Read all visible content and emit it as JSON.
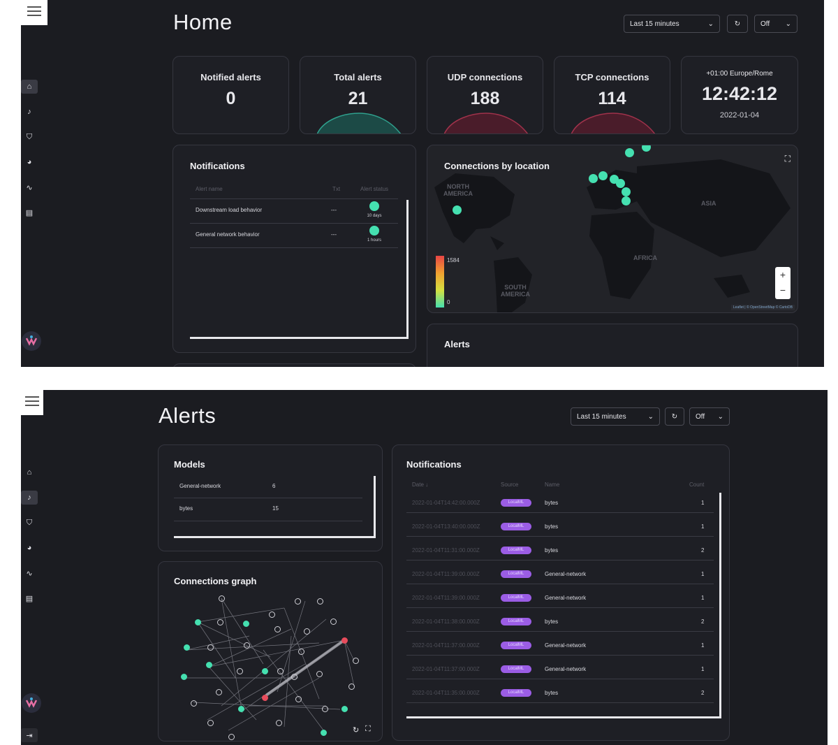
{
  "home": {
    "title": "Home",
    "time_range": "Last 15 minutes",
    "refresh": "Off",
    "stats": [
      {
        "label": "Notified alerts",
        "value": "0"
      },
      {
        "label": "Total alerts",
        "value": "21"
      },
      {
        "label": "UDP connections",
        "value": "188"
      },
      {
        "label": "TCP connections",
        "value": "114"
      }
    ],
    "clock": {
      "timezone": "+01:00 Europe/Rome",
      "time": "12:42:12",
      "date": "2022-01-04"
    },
    "notifications": {
      "title": "Notifications",
      "headers": [
        "Alert name",
        "Txt",
        "Alert status"
      ],
      "rows": [
        {
          "name": "Downstream load behavior",
          "txt": "---",
          "status": "10 days"
        },
        {
          "name": "General network behavior",
          "txt": "---",
          "status": "1 hours"
        }
      ]
    },
    "map": {
      "title": "Connections by location",
      "labels": [
        "NORTH AMERICA",
        "ASIA",
        "AFRICA",
        "SOUTH AMERICA"
      ],
      "legend_max": "1584",
      "legend_min": "0",
      "zoom_in": "+",
      "zoom_out": "−",
      "attribution": "Leaflet | © OpenStreetMap © CartoDB"
    },
    "alerts_card_title": "Alerts"
  },
  "alerts": {
    "title": "Alerts",
    "time_range": "Last 15 minutes",
    "refresh": "Off",
    "models": {
      "title": "Models",
      "rows": [
        {
          "name": "General-network",
          "count": "6"
        },
        {
          "name": "bytes",
          "count": "15"
        }
      ]
    },
    "graph": {
      "title": "Connections graph"
    },
    "notifications": {
      "title": "Notifications",
      "headers": [
        "Date ↓",
        "Source",
        "Name",
        "Count"
      ],
      "rows": [
        {
          "date": "2022-01-04T14:42:00.000Z",
          "source": "LocalML",
          "name": "bytes",
          "count": "1"
        },
        {
          "date": "2022-01-04T13:40:00.000Z",
          "source": "LocalML",
          "name": "bytes",
          "count": "1"
        },
        {
          "date": "2022-01-04T11:31:00.000Z",
          "source": "LocalML",
          "name": "bytes",
          "count": "2"
        },
        {
          "date": "2022-01-04T11:39:00.000Z",
          "source": "LocalML",
          "name": "General-network",
          "count": "1"
        },
        {
          "date": "2022-01-04T11:39:00.000Z",
          "source": "LocalML",
          "name": "General-network",
          "count": "1"
        },
        {
          "date": "2022-01-04T11:38:00.000Z",
          "source": "LocalML",
          "name": "bytes",
          "count": "2"
        },
        {
          "date": "2022-01-04T11:37:00.000Z",
          "source": "LocalML",
          "name": "General-network",
          "count": "1"
        },
        {
          "date": "2022-01-04T11:37:00.000Z",
          "source": "LocalML",
          "name": "General-network",
          "count": "1"
        },
        {
          "date": "2022-01-04T11:35:00.000Z",
          "source": "LocalML",
          "name": "bytes",
          "count": "2"
        }
      ]
    }
  },
  "icons": {
    "menu": "hamburger-menu-icon",
    "sidebar": [
      "home-icon",
      "bell-icon",
      "shield-icon",
      "pie-chart-icon",
      "activity-icon",
      "database-icon"
    ],
    "logout": "logout-icon",
    "refresh": "refresh-icon",
    "chevron": "chevron-down-icon",
    "fullscreen": "fullscreen-icon"
  },
  "colors": {
    "background": "#1b1c21",
    "card": "#1e1f25",
    "accent_green": "#45e0b0",
    "accent_red": "#e74c5c",
    "badge_purple": "#9b5de5"
  }
}
